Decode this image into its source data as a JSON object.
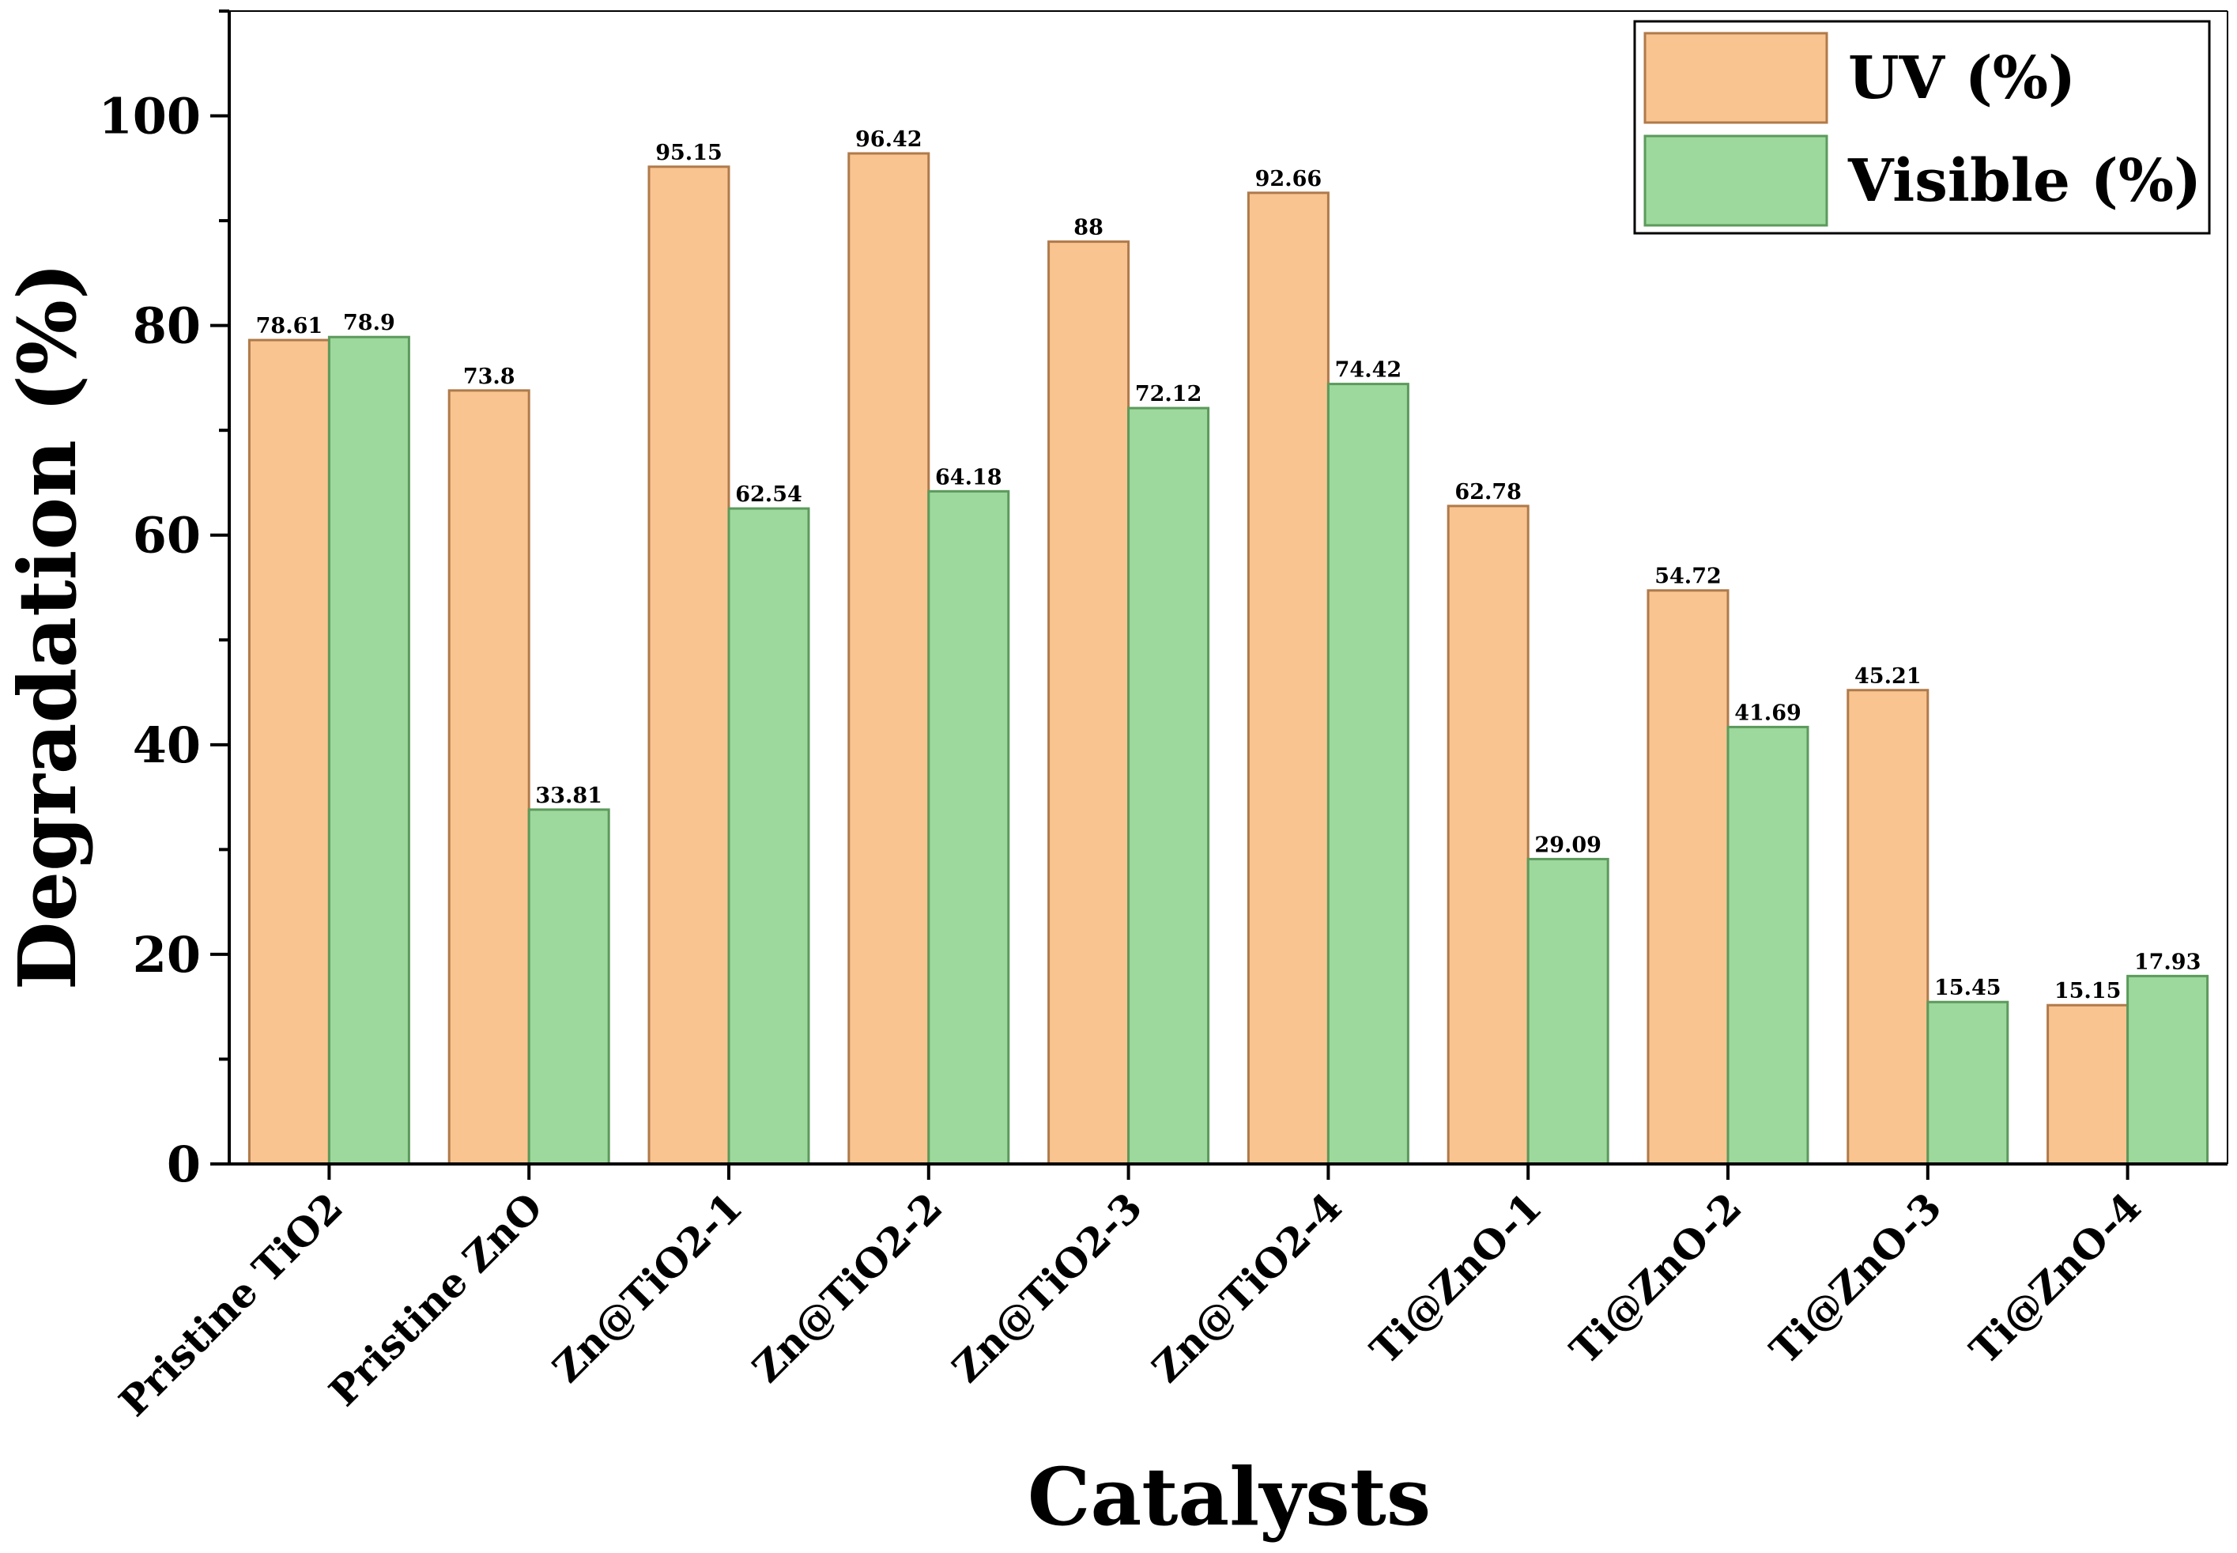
{
  "chart_data": {
    "type": "bar",
    "title": "",
    "xlabel": "Catalysts",
    "ylabel": "Degradation (%)",
    "ylim": [
      0,
      110
    ],
    "yticks": [
      0,
      20,
      40,
      60,
      80,
      100
    ],
    "grid": false,
    "legend_position": "top-right",
    "categories": [
      "Pristine TiO2",
      "Pristine ZnO",
      "Zn@TiO2-1",
      "Zn@TiO2-2",
      "Zn@TiO2-3",
      "Zn@TiO2-4",
      "Ti@ZnO-1",
      "Ti@ZnO-2",
      "Ti@ZnO-3",
      "Ti@ZnO-4"
    ],
    "series": [
      {
        "name": "UV (%)",
        "color": "#f9c490",
        "edge": "#b07a4a",
        "values": [
          78.61,
          73.8,
          95.15,
          96.42,
          88,
          92.66,
          62.78,
          54.72,
          45.21,
          15.15
        ],
        "labels": [
          "78.61",
          "73.8",
          "95.15",
          "96.42",
          "88",
          "92.66",
          "62.78",
          "54.72",
          "45.21",
          "15.15"
        ]
      },
      {
        "name": "Visible (%)",
        "color": "#9dd89c",
        "edge": "#5c9a5c",
        "values": [
          78.9,
          33.81,
          62.54,
          64.18,
          72.12,
          74.42,
          29.09,
          41.69,
          15.45,
          17.93
        ],
        "labels": [
          "78.9",
          "33.81",
          "62.54",
          "64.18",
          "72.12",
          "74.42",
          "29.09",
          "41.69",
          "15.45",
          "17.93"
        ]
      }
    ]
  }
}
